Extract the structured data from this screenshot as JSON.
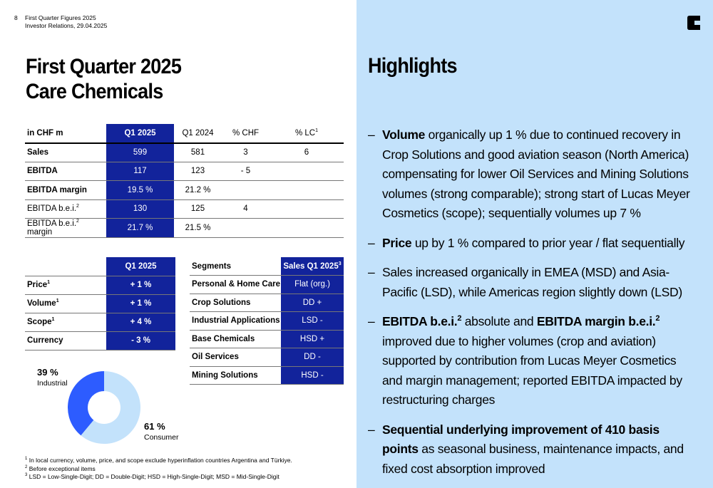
{
  "header": {
    "page_number": "8",
    "doc_title": "First Quarter Figures 2025",
    "doc_subtitle": "Investor Relations, 29.04.2025"
  },
  "title": {
    "line1": "First Quarter 2025",
    "line2": "Care Chemicals"
  },
  "financial_table": {
    "headers": [
      "in CHF m",
      "Q1 2025",
      "Q1 2024",
      "% CHF",
      "% LC"
    ],
    "header_lc_sup": "1",
    "rows": [
      {
        "label": "Sales",
        "sup": "",
        "bold": true,
        "q1_2025": "599",
        "q1_2024": "581",
        "chf": "3",
        "lc": "6"
      },
      {
        "label": "EBITDA",
        "sup": "",
        "bold": true,
        "q1_2025": "117",
        "q1_2024": "123",
        "chf": "- 5",
        "lc": ""
      },
      {
        "label": "EBITDA margin",
        "sup": "",
        "bold": true,
        "q1_2025": "19.5 %",
        "q1_2024": "21.2 %",
        "chf": "",
        "lc": ""
      },
      {
        "label": "EBITDA b.e.i.",
        "sup": "2",
        "suffix": "",
        "bold": false,
        "q1_2025": "130",
        "q1_2024": "125",
        "chf": "4",
        "lc": ""
      },
      {
        "label": "EBITDA b.e.i.",
        "sup": "2",
        "suffix": " margin",
        "bold": false,
        "q1_2025": "21.7 %",
        "q1_2024": "21.5 %",
        "chf": "",
        "lc": ""
      }
    ]
  },
  "drivers_table": {
    "header": "Q1 2025",
    "rows": [
      {
        "label": "Price",
        "sup": "1",
        "value": "+ 1 %"
      },
      {
        "label": "Volume",
        "sup": "1",
        "value": "+ 1 %"
      },
      {
        "label": "Scope",
        "sup": "1",
        "value": "+ 4 %"
      },
      {
        "label": "Currency",
        "sup": "",
        "value": "- 3 %"
      }
    ]
  },
  "segments_table": {
    "headers": [
      "Segments",
      "Sales Q1 2025"
    ],
    "header_sup": "3",
    "rows": [
      {
        "segment": "Personal & Home Care",
        "value": "Flat (org.)"
      },
      {
        "segment": "Crop Solutions",
        "value": "DD +"
      },
      {
        "segment": "Industrial Applications",
        "value": "LSD -"
      },
      {
        "segment": "Base Chemicals",
        "value": "HSD +"
      },
      {
        "segment": "Oil Services",
        "value": "DD -"
      },
      {
        "segment": "Mining Solutions",
        "value": "HSD -"
      }
    ]
  },
  "chart_data": {
    "type": "pie",
    "categories": [
      "Industrial",
      "Consumer"
    ],
    "values": [
      39,
      61
    ],
    "value_labels": [
      "39 %",
      "61 %"
    ],
    "colors": [
      "#2d5cff",
      "#c3e2fb"
    ]
  },
  "footnotes": [
    {
      "num": "1",
      "text": "In local currency, volume, price, and scope exclude hyperinflation countries Argentina and Türkiye."
    },
    {
      "num": "2",
      "text": "Before exceptional items"
    },
    {
      "num": "3",
      "text": "LSD = Low-Single-Digit; DD = Double-Digit; HSD = High-Single-Digit; MSD = Mid-Single-Digit"
    }
  ],
  "highlights": {
    "title": "Highlights",
    "bullets": [
      {
        "b1": "Volume",
        "t1": " organically up 1 % due to continued recovery in Crop Solutions and good aviation season (North America) compensating for lower Oil Services and Mining Solutions volumes (strong comparable); strong start of Lucas Meyer Cosmetics (scope); sequentially volumes up 7 %"
      },
      {
        "b1": "Price",
        "t1": " up by 1 % compared to prior year / flat sequentially"
      },
      {
        "t0": "Sales increased organically in EMEA (MSD) and Asia-Pacific (LSD), while Americas region slightly down (LSD)"
      },
      {
        "b1": "EBITDA b.e.i.",
        "s1": "2",
        "t1": " absolute and ",
        "b2": "EBITDA margin b.e.i.",
        "s2": "2",
        "t2": " improved due to higher volumes (crop and aviation) supported by contribution from Lucas Meyer Cosmetics and margin management; reported EBITDA impacted by restructuring charges"
      },
      {
        "b1": "Sequential underlying improvement of 410 basis points",
        "t1": " as seasonal business, maintenance impacts, and fixed cost absorption improved"
      }
    ]
  }
}
